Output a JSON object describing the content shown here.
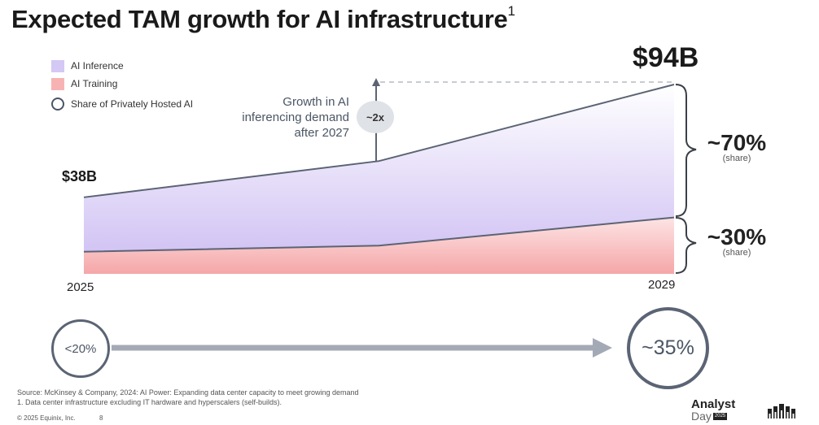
{
  "title": "Expected TAM growth for AI infrastructure",
  "title_superscript": "1",
  "legend": {
    "inference": "AI Inference",
    "training": "AI Training",
    "share": "Share of Privately Hosted AI"
  },
  "growth_note": {
    "line1": "Growth in AI",
    "line2": "inferencing demand",
    "line3": "after 2027",
    "badge": "~2x"
  },
  "labels": {
    "start_total": "$38B",
    "end_total": "$94B",
    "year_start": "2025",
    "year_end": "2029"
  },
  "shares": {
    "inference_pct": "~70%",
    "inference_sub": "(share)",
    "training_pct": "~30%",
    "training_sub": "(share)"
  },
  "private_share": {
    "start": "<20%",
    "end": "~35%"
  },
  "footer": {
    "source": "Source: McKinsey & Company, 2024: AI Power: Expanding data center capacity to meet growing demand",
    "note": "1.  Data center infrastructure excluding IT hardware and hyperscalers (self-builds).",
    "copyright": "© 2025 Equinix, Inc.",
    "page": "8",
    "brand_line1": "Analyst",
    "brand_line2": "Day",
    "brand_year": "2025"
  },
  "colors": {
    "inference": "#d4c8f5",
    "training": "#f7b3b3",
    "line": "#5b6474",
    "arrow": "#a4aab5"
  },
  "chart_data": {
    "type": "area",
    "x": [
      2025,
      2027,
      2029
    ],
    "stacked": true,
    "series": [
      {
        "name": "AI Training",
        "values": [
          11,
          14,
          28
        ]
      },
      {
        "name": "AI Inference",
        "values": [
          27,
          42,
          66
        ]
      }
    ],
    "ylim": [
      0,
      94
    ],
    "grid": false,
    "legend_position": "top-left"
  }
}
